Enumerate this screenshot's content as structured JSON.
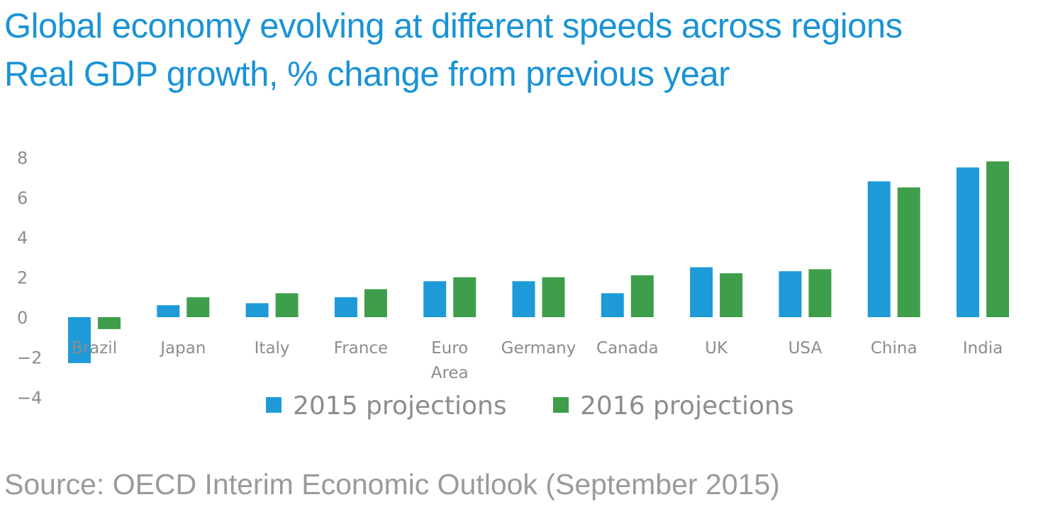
{
  "title": "Global economy evolving at different speeds across regions",
  "subtitle": "Real GDP growth, % change from previous year",
  "source": "Source: OECD Interim Economic Outlook (September 2015)",
  "colors": {
    "title": "#1a93d6",
    "series_2015": "#1e9ad9",
    "series_2016": "#3f9e4b",
    "text": "#8c8c8c"
  },
  "chart_data": {
    "type": "bar",
    "categories": [
      "Brazil",
      "Japan",
      "Italy",
      "France",
      "Euro Area",
      "Germany",
      "Canada",
      "UK",
      "USA",
      "China",
      "India"
    ],
    "series": [
      {
        "name": "2015 projections",
        "values": [
          -2.3,
          0.6,
          0.7,
          1.0,
          1.8,
          1.8,
          1.2,
          2.5,
          2.3,
          6.8,
          7.5
        ]
      },
      {
        "name": "2016 projections",
        "values": [
          -0.6,
          1.0,
          1.2,
          1.4,
          2.0,
          2.0,
          2.1,
          2.2,
          2.4,
          6.5,
          7.8
        ]
      }
    ],
    "yticks": [
      8,
      6,
      4,
      2,
      0,
      -2,
      -4
    ],
    "ylim": [
      -4,
      8
    ],
    "grid": false,
    "legend_position": "bottom"
  }
}
